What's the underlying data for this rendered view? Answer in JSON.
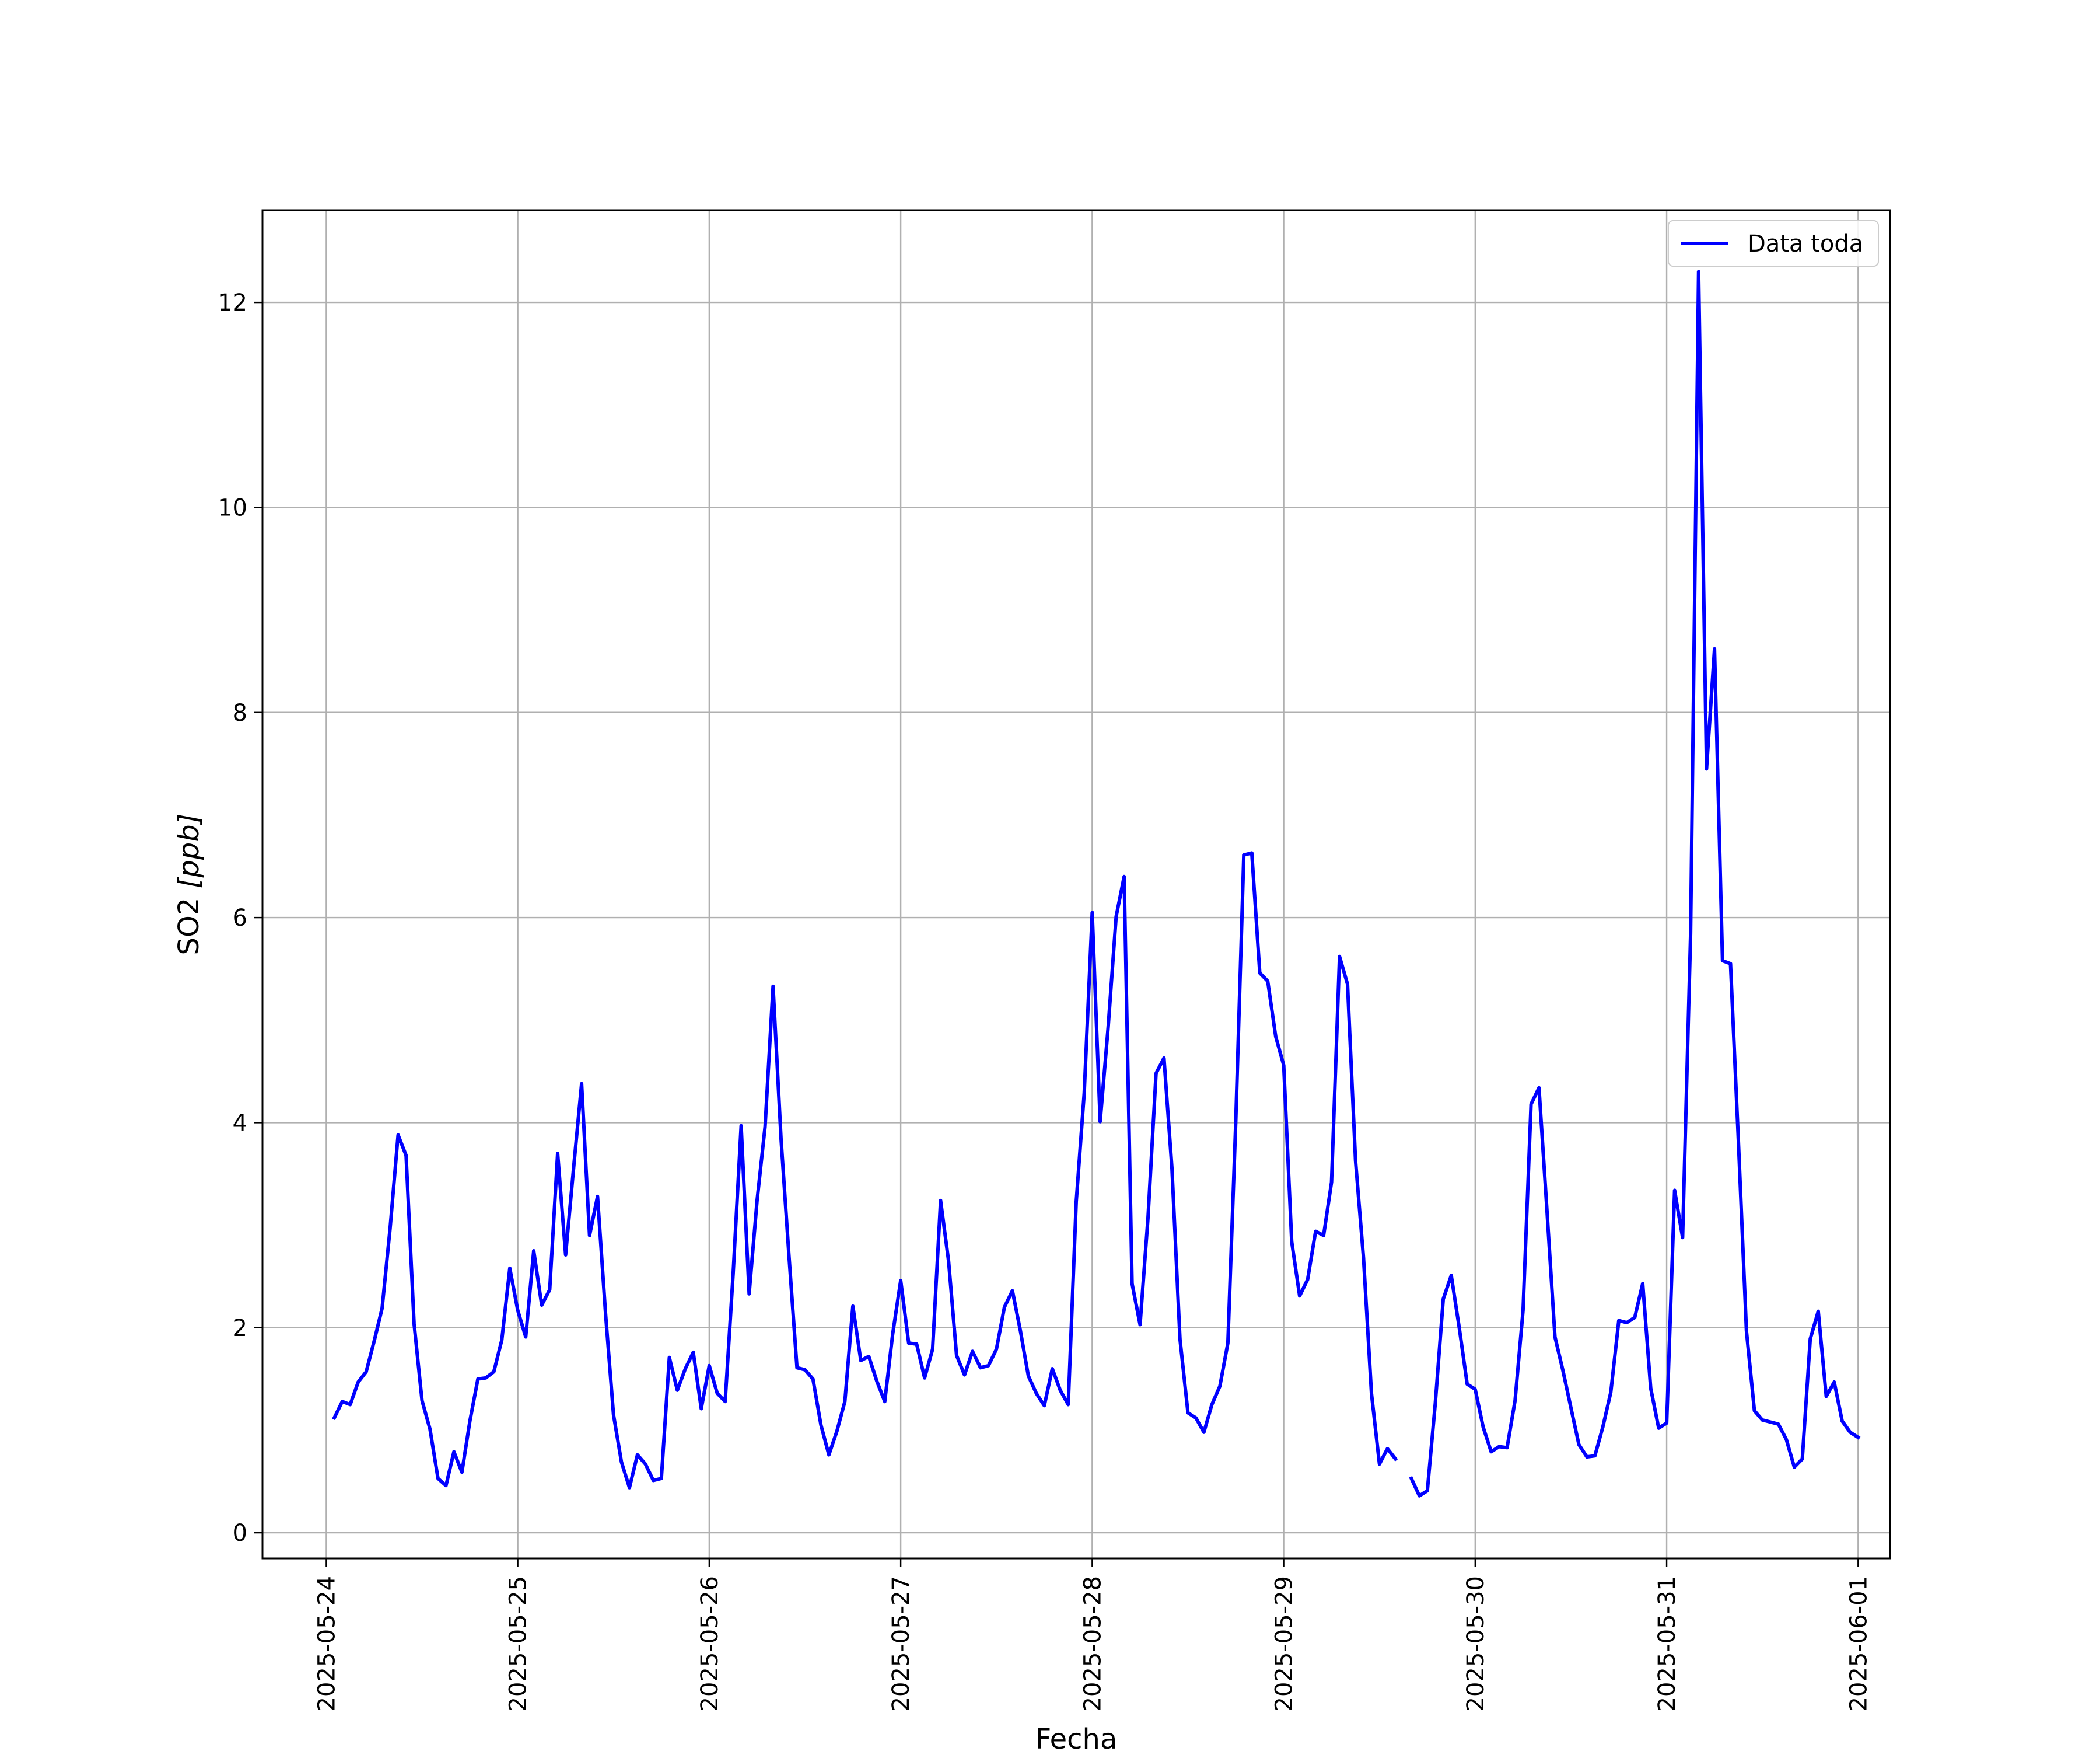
{
  "chart_data": {
    "type": "line",
    "xlabel": "Fecha",
    "ylabel_main": "SO2 ",
    "ylabel_unit": "[ppb]",
    "x_tick_labels": [
      "2025-05-24",
      "2025-05-25",
      "2025-05-26",
      "2025-05-27",
      "2025-05-28",
      "2025-05-29",
      "2025-05-30",
      "2025-05-31",
      "2025-06-01"
    ],
    "y_ticks": [
      0,
      2,
      4,
      6,
      8,
      10,
      12
    ],
    "y_tick_labels": [
      "0",
      "2",
      "4",
      "6",
      "8",
      "10",
      "12"
    ],
    "xlim": [
      "2025-05-23T16:00",
      "2025-06-01T04:00"
    ],
    "ylim": [
      -0.25,
      12.9
    ],
    "grid": true,
    "legend": {
      "position": "top-right"
    },
    "series": [
      {
        "name": "Data toda",
        "color": "#0000ff",
        "x_start": "2025-05-24T01:00",
        "x_step_hours": 1,
        "values": [
          1.12,
          1.28,
          1.25,
          1.47,
          1.57,
          1.87,
          2.19,
          2.97,
          3.88,
          3.68,
          2.04,
          1.29,
          1.01,
          0.53,
          0.46,
          0.79,
          0.59,
          1.09,
          1.5,
          1.51,
          1.57,
          1.88,
          2.58,
          2.17,
          1.91,
          2.75,
          2.22,
          2.37,
          3.7,
          2.71,
          3.56,
          4.38,
          2.9,
          3.28,
          2.14,
          1.15,
          0.69,
          0.44,
          0.76,
          0.67,
          0.51,
          0.53,
          1.71,
          1.39,
          1.6,
          1.76,
          1.21,
          1.63,
          1.36,
          1.28,
          2.53,
          3.97,
          2.33,
          3.24,
          3.96,
          5.33,
          3.84,
          2.7,
          1.61,
          1.59,
          1.5,
          1.05,
          0.76,
          0.99,
          1.28,
          2.21,
          1.68,
          1.72,
          1.48,
          1.28,
          1.94,
          2.46,
          1.85,
          1.84,
          1.51,
          1.79,
          3.24,
          2.65,
          1.73,
          1.54,
          1.77,
          1.61,
          1.63,
          1.79,
          2.2,
          2.36,
          1.97,
          1.53,
          1.36,
          1.24,
          1.6,
          1.39,
          1.25,
          3.23,
          4.29,
          6.05,
          4.01,
          4.93,
          6.01,
          6.4,
          2.43,
          2.03,
          3.08,
          4.48,
          4.63,
          3.55,
          1.89,
          1.17,
          1.12,
          0.98,
          1.25,
          1.43,
          1.85,
          4.02,
          6.61,
          6.63,
          5.46,
          5.38,
          4.84,
          4.56,
          2.84,
          2.31,
          2.47,
          2.94,
          2.9,
          3.42,
          5.62,
          5.35,
          3.63,
          2.68,
          1.36,
          0.67,
          0.82,
          0.72,
          null,
          0.53,
          0.36,
          0.41,
          1.26,
          2.28,
          2.51,
          2.0,
          1.45,
          1.4,
          1.03,
          0.79,
          0.84,
          0.83,
          1.29,
          2.17,
          4.18,
          4.34,
          3.14,
          1.91,
          1.58,
          1.22,
          0.86,
          0.74,
          0.75,
          1.03,
          1.37,
          2.07,
          2.05,
          2.1,
          2.43,
          1.41,
          1.02,
          1.07,
          3.34,
          2.88,
          5.84,
          12.3,
          7.45,
          8.62,
          5.58,
          5.55,
          3.81,
          1.97,
          1.19,
          1.1,
          1.08,
          1.06,
          0.91,
          0.64,
          0.72,
          1.89,
          2.16,
          1.33,
          1.47,
          1.09,
          0.98,
          0.93
        ]
      }
    ]
  }
}
